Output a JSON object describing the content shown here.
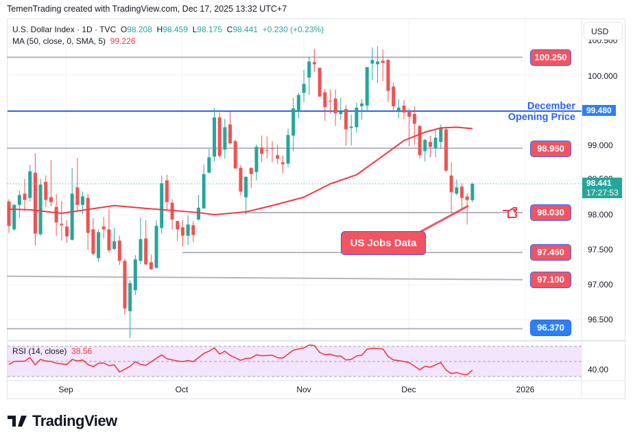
{
  "credit": "TemenTrading created with TradingView.com, Dec 17, 2025 13:32 UTC+7",
  "legend": {
    "symbol": "U.S. Dollar Index · 1D · TVC",
    "o_label": "O",
    "o": "98.208",
    "h_label": "H",
    "h": "98.459",
    "l_label": "L",
    "l": "98.175",
    "c_label": "C",
    "c": "98.441",
    "change": "+0.230 (+0.23%)",
    "ma_label": "MA (50, close, 0, SMA, 5)",
    "ma_value": "99.226"
  },
  "currency_button": "USD",
  "price_axis": [
    "100.500",
    "100.000",
    "99.000",
    "98.500",
    "98.000",
    "97.500",
    "97.000",
    "96.500"
  ],
  "current_price": {
    "value": "98.441",
    "countdown": "17:27:53"
  },
  "opening_line": {
    "value": "99.480",
    "label_line1": "December",
    "label_line2": "Opening Price"
  },
  "levels": {
    "l1": "100.250",
    "l2": "98.950",
    "l3": "98.030",
    "l4": "97.460",
    "l5": "97.100",
    "l6": "96.370"
  },
  "callout": "US Jobs Data",
  "time_axis": [
    "Sep",
    "Oct",
    "Nov",
    "Dec",
    "2026"
  ],
  "rsi": {
    "label": "RSI (14, close)",
    "value": "38.56",
    "axis_label": "40.00"
  },
  "logo_text": "TradingView",
  "colors": {
    "up": "#26a69a",
    "down": "#ef5350",
    "ma": "#f23645",
    "opening_line": "#2962ff",
    "level_tag": "#f25462",
    "rsi_bg": "#f3e5fb"
  },
  "chart_data": {
    "type": "candlestick",
    "ohlc": [
      [
        98.19,
        98.22,
        97.74,
        97.84
      ],
      [
        97.79,
        98.15,
        97.77,
        98.14
      ],
      [
        98.14,
        98.34,
        97.95,
        98.28
      ],
      [
        98.3,
        98.51,
        98.05,
        98.21
      ],
      [
        98.24,
        98.71,
        98.19,
        98.62
      ],
      [
        98.6,
        98.88,
        97.56,
        97.73
      ],
      [
        97.72,
        98.51,
        97.7,
        98.43
      ],
      [
        98.47,
        98.56,
        98.11,
        98.21
      ],
      [
        98.25,
        98.78,
        98.12,
        98.18
      ],
      [
        98.11,
        98.29,
        97.7,
        97.89
      ],
      [
        97.87,
        98.2,
        97.63,
        97.85
      ],
      [
        97.83,
        97.92,
        97.6,
        97.69
      ],
      [
        97.64,
        98.67,
        97.63,
        98.3
      ],
      [
        98.39,
        98.81,
        98.06,
        98.14
      ],
      [
        98.14,
        98.33,
        98.01,
        98.26
      ],
      [
        98.24,
        98.3,
        97.5,
        97.74
      ],
      [
        97.79,
        97.95,
        97.42,
        97.44
      ],
      [
        97.38,
        97.79,
        97.33,
        97.75
      ],
      [
        97.83,
        97.97,
        97.66,
        97.79
      ],
      [
        97.79,
        98.08,
        97.46,
        97.49
      ],
      [
        97.51,
        97.81,
        97.49,
        97.62
      ],
      [
        97.63,
        97.7,
        97.28,
        97.34
      ],
      [
        97.34,
        97.37,
        96.57,
        96.66
      ],
      [
        96.62,
        97.06,
        96.24,
        97.02
      ],
      [
        96.92,
        97.42,
        96.85,
        97.36
      ],
      [
        97.34,
        97.96,
        97.29,
        97.65
      ],
      [
        97.66,
        97.92,
        97.28,
        97.29
      ],
      [
        97.32,
        97.43,
        97.21,
        97.22
      ],
      [
        97.24,
        97.92,
        97.23,
        97.84
      ],
      [
        97.81,
        98.56,
        97.73,
        98.45
      ],
      [
        98.49,
        98.57,
        98.06,
        98.18
      ],
      [
        98.17,
        98.22,
        97.79,
        97.93
      ],
      [
        97.91,
        97.91,
        97.62,
        97.79
      ],
      [
        97.82,
        97.92,
        97.55,
        97.7
      ],
      [
        97.7,
        97.99,
        97.57,
        97.86
      ],
      [
        97.85,
        97.91,
        97.61,
        97.71
      ],
      [
        97.93,
        98.28,
        97.92,
        98.1
      ],
      [
        98.09,
        98.72,
        98.08,
        98.58
      ],
      [
        98.6,
        98.94,
        98.59,
        98.82
      ],
      [
        98.83,
        99.52,
        98.76,
        99.39
      ],
      [
        99.39,
        99.46,
        98.81,
        98.84
      ],
      [
        98.93,
        99.37,
        98.8,
        99.25
      ],
      [
        99.29,
        99.47,
        99.0,
        99.02
      ],
      [
        99.05,
        99.07,
        98.66,
        98.66
      ],
      [
        98.67,
        98.71,
        98.28,
        98.33
      ],
      [
        98.25,
        98.55,
        98.01,
        98.54
      ],
      [
        98.67,
        98.67,
        98.38,
        98.58
      ],
      [
        98.61,
        99.0,
        98.49,
        98.97
      ],
      [
        98.96,
        99.13,
        98.75,
        98.87
      ],
      [
        98.92,
        99.12,
        98.8,
        98.91
      ],
      [
        98.95,
        99.05,
        98.75,
        98.94
      ],
      [
        98.85,
        99.0,
        98.72,
        98.8
      ],
      [
        98.75,
        98.85,
        98.59,
        98.72
      ],
      [
        98.73,
        99.23,
        98.68,
        99.14
      ],
      [
        99.13,
        99.67,
        98.91,
        99.52
      ],
      [
        99.48,
        99.74,
        99.37,
        99.71
      ],
      [
        99.74,
        100.07,
        99.61,
        99.87
      ],
      [
        99.96,
        100.26,
        99.71,
        100.19
      ],
      [
        100.18,
        100.37,
        100.04,
        100.15
      ],
      [
        100.1,
        100.1,
        99.68,
        99.69
      ],
      [
        99.75,
        99.8,
        99.34,
        99.54
      ],
      [
        99.63,
        99.79,
        99.45,
        99.62
      ],
      [
        99.66,
        99.79,
        99.27,
        99.45
      ],
      [
        99.44,
        99.67,
        99.35,
        99.47
      ],
      [
        99.51,
        99.57,
        98.99,
        99.22
      ],
      [
        99.24,
        99.43,
        98.99,
        99.26
      ],
      [
        99.25,
        99.6,
        99.17,
        99.53
      ],
      [
        99.55,
        99.65,
        99.36,
        99.59
      ],
      [
        99.56,
        100.11,
        99.47,
        100.11
      ],
      [
        100.16,
        100.39,
        99.92,
        100.21
      ],
      [
        100.15,
        100.41,
        99.88,
        100.19
      ],
      [
        100.2,
        100.36,
        99.91,
        100.17
      ],
      [
        100.21,
        100.23,
        99.61,
        99.77
      ],
      [
        99.83,
        99.89,
        99.48,
        99.55
      ],
      [
        99.49,
        99.65,
        99.38,
        99.53
      ],
      [
        99.56,
        99.64,
        99.37,
        99.46
      ],
      [
        99.48,
        99.52,
        98.98,
        99.4
      ],
      [
        99.44,
        99.55,
        99.0,
        99.3
      ],
      [
        99.27,
        99.27,
        98.8,
        98.85
      ],
      [
        98.91,
        99.08,
        98.76,
        99.07
      ],
      [
        99.04,
        99.13,
        98.82,
        98.97
      ],
      [
        98.95,
        99.22,
        98.82,
        99.1
      ],
      [
        99.04,
        99.29,
        98.94,
        99.24
      ],
      [
        99.22,
        99.26,
        98.61,
        98.63
      ],
      [
        98.56,
        98.75,
        98.03,
        98.32
      ],
      [
        98.3,
        98.5,
        98.28,
        98.39
      ],
      [
        98.4,
        98.45,
        98.07,
        98.24
      ],
      [
        98.26,
        98.3,
        97.86,
        98.21
      ],
      [
        98.208,
        98.459,
        98.175,
        98.441
      ]
    ],
    "ma50": [
      [
        0,
        98.08
      ],
      [
        4,
        98.07
      ],
      [
        10,
        98.02
      ],
      [
        20,
        98.13
      ],
      [
        26,
        98.09
      ],
      [
        36,
        98.03
      ],
      [
        39,
        98.0
      ],
      [
        45,
        98.04
      ],
      [
        50,
        98.13
      ],
      [
        56,
        98.25
      ],
      [
        61,
        98.44
      ],
      [
        66,
        98.57
      ],
      [
        71,
        98.84
      ],
      [
        75,
        99.06
      ],
      [
        79,
        99.18
      ],
      [
        82,
        99.24
      ],
      [
        85,
        99.25
      ],
      [
        88,
        99.23
      ]
    ],
    "rsi": [
      [
        0,
        46
      ],
      [
        1,
        50
      ],
      [
        2,
        50.3
      ],
      [
        3,
        50.3
      ],
      [
        4,
        55
      ],
      [
        5,
        45.5
      ],
      [
        6,
        52.7
      ],
      [
        7,
        50.6
      ],
      [
        8,
        50
      ],
      [
        9,
        47.6
      ],
      [
        11,
        46
      ],
      [
        12,
        52.7
      ],
      [
        13,
        50.6
      ],
      [
        14,
        52
      ],
      [
        15,
        46
      ],
      [
        16,
        43
      ],
      [
        17,
        47.6
      ],
      [
        18,
        48
      ],
      [
        19,
        44.5
      ],
      [
        20,
        45.5
      ],
      [
        21,
        36
      ],
      [
        23,
        43.6
      ],
      [
        24,
        49.7
      ],
      [
        25,
        46
      ],
      [
        26,
        45
      ],
      [
        29,
        58.8
      ],
      [
        30,
        53.6
      ],
      [
        32,
        50.6
      ],
      [
        33,
        49.7
      ],
      [
        34,
        51.2
      ],
      [
        35,
        49.7
      ],
      [
        37,
        60.6
      ],
      [
        38,
        63.6
      ],
      [
        39,
        67.9
      ],
      [
        40,
        59.7
      ],
      [
        41,
        63.6
      ],
      [
        42,
        58
      ],
      [
        44,
        51.5
      ],
      [
        45,
        54
      ],
      [
        46,
        54.5
      ],
      [
        47,
        58.8
      ],
      [
        48,
        57.6
      ],
      [
        50,
        58.2
      ],
      [
        51,
        55
      ],
      [
        52,
        54.5
      ],
      [
        54,
        65
      ],
      [
        56,
        68
      ],
      [
        57,
        71.8
      ],
      [
        58,
        71.2
      ],
      [
        59,
        61.8
      ],
      [
        60,
        59
      ],
      [
        61,
        59.7
      ],
      [
        62,
        57.3
      ],
      [
        63,
        57
      ],
      [
        64,
        52
      ],
      [
        65,
        52.7
      ],
      [
        66,
        57.3
      ],
      [
        67,
        58.2
      ],
      [
        68,
        66.4
      ],
      [
        69,
        67.3
      ],
      [
        71,
        66.7
      ],
      [
        72,
        56.7
      ],
      [
        73,
        52
      ],
      [
        74,
        51.2
      ],
      [
        76,
        48.5
      ],
      [
        78,
        39
      ],
      [
        79,
        43.6
      ],
      [
        80,
        42.4
      ],
      [
        82,
        48.5
      ],
      [
        83,
        38.5
      ],
      [
        84,
        34
      ],
      [
        85,
        35.2
      ],
      [
        86,
        33.3
      ],
      [
        87,
        32.4
      ],
      [
        88,
        38.56
      ]
    ],
    "rsi_levels": [
      70,
      50,
      30
    ],
    "ylim": [
      96.1,
      100.6
    ],
    "horizontal_levels": [
      100.25,
      98.95,
      98.03,
      97.46,
      97.1,
      96.37
    ],
    "opening_price_level": 99.48
  }
}
